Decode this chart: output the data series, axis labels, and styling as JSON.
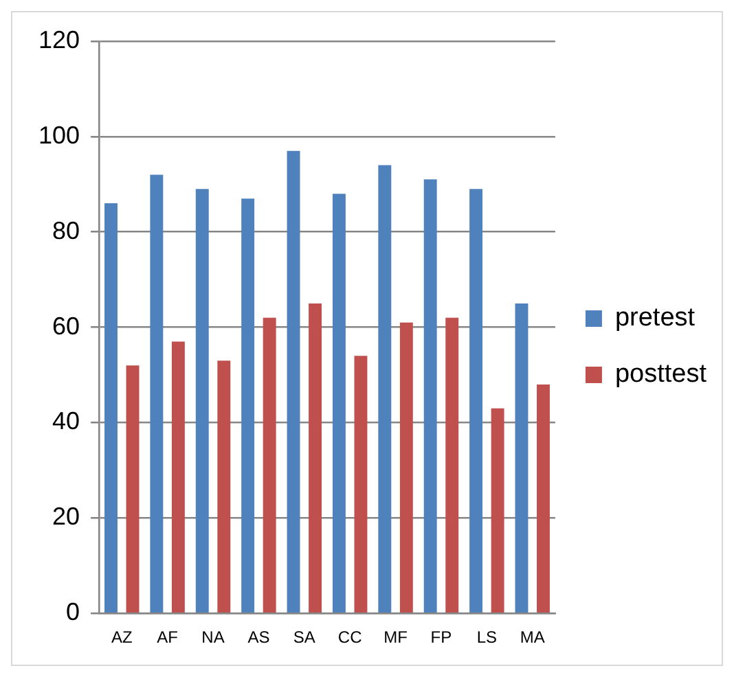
{
  "chart_data": {
    "type": "bar",
    "categories": [
      "AZ",
      "AF",
      "NA",
      "AS",
      "SA",
      "CC",
      "MF",
      "FP",
      "LS",
      "MA"
    ],
    "series": [
      {
        "name": "pretest",
        "color": "#4f81bd",
        "values": [
          86,
          92,
          89,
          87,
          97,
          88,
          94,
          91,
          89,
          65
        ]
      },
      {
        "name": "posttest",
        "color": "#c0504d",
        "values": [
          52,
          57,
          53,
          62,
          65,
          54,
          61,
          62,
          43,
          48
        ]
      }
    ],
    "ylim": [
      0,
      120
    ],
    "yticks": [
      0,
      20,
      40,
      60,
      80,
      100,
      120
    ],
    "grid": "y",
    "legend": "right"
  }
}
